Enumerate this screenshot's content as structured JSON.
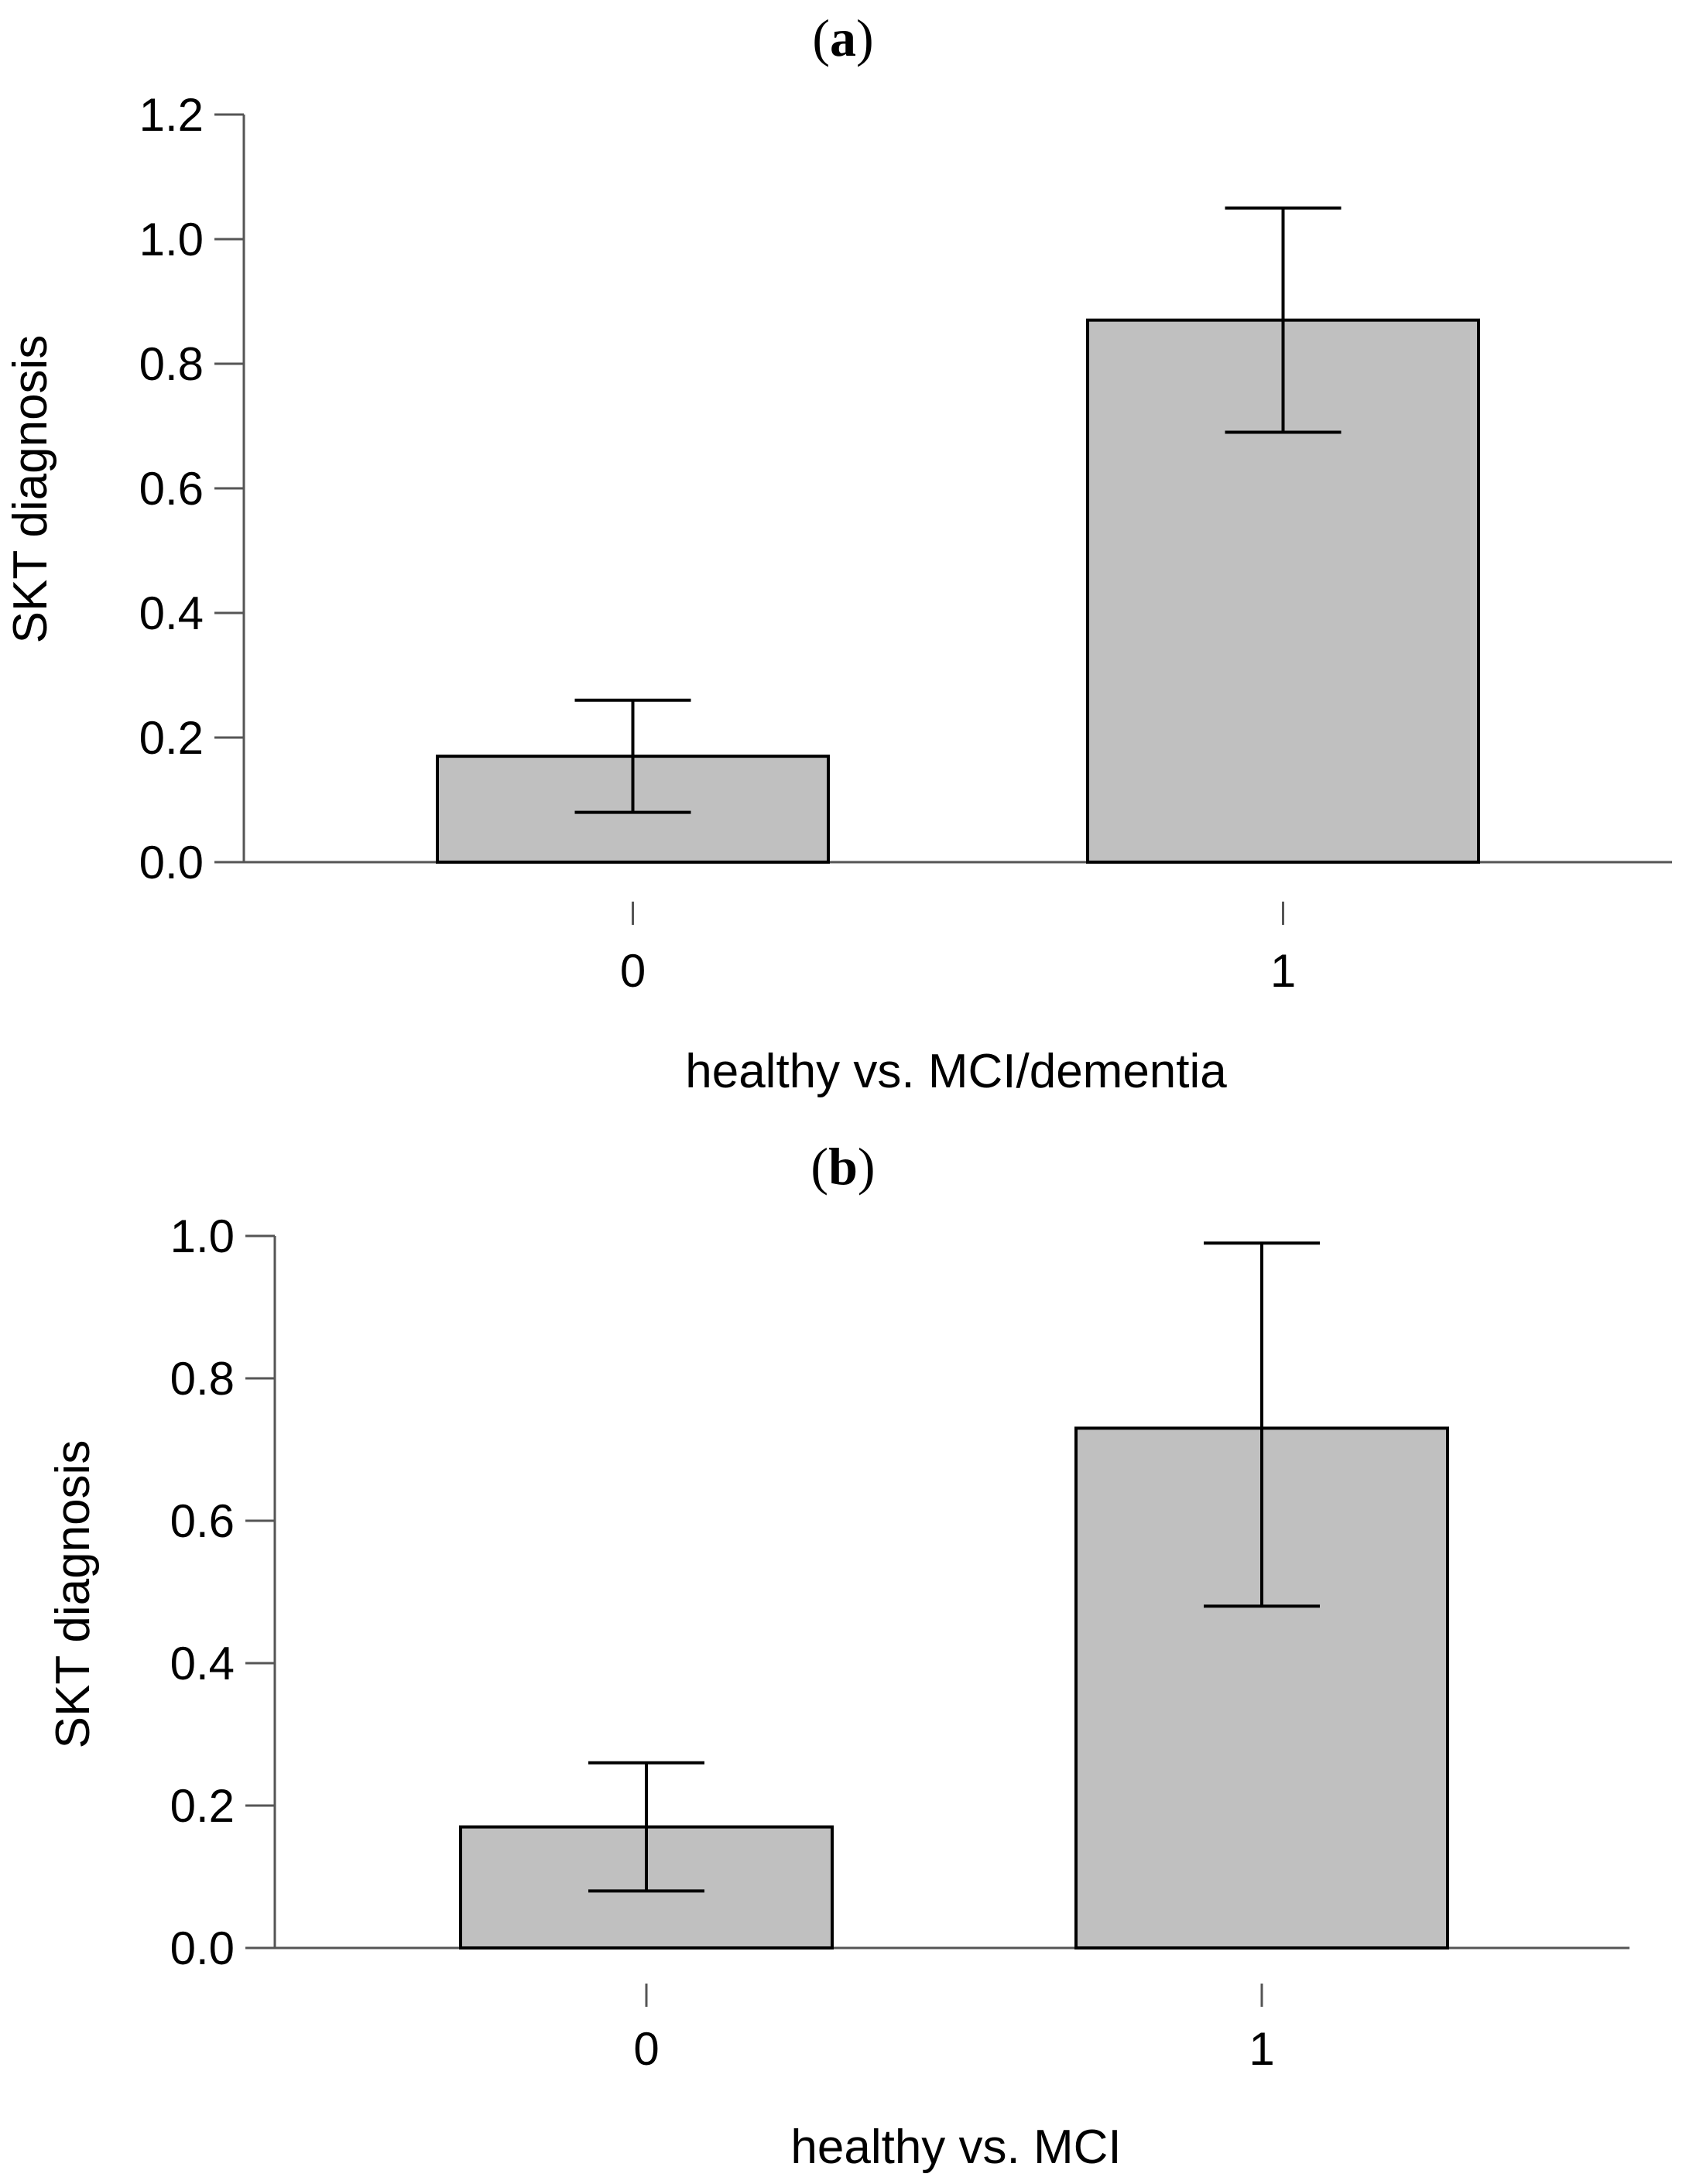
{
  "chart_data": [
    {
      "panel": "a",
      "type": "bar",
      "title": "(a)",
      "xlabel": "healthy vs. MCI/dementia",
      "ylabel": "SKT diagnosis",
      "categories": [
        "0",
        "1"
      ],
      "values": [
        0.17,
        0.87
      ],
      "error_low": [
        0.08,
        0.69
      ],
      "error_high": [
        0.26,
        1.05
      ],
      "ylim": [
        0,
        1.2
      ],
      "yticks": [
        "0.0",
        "0.2",
        "0.4",
        "0.6",
        "0.8",
        "1.0",
        "1.2"
      ],
      "grid": false,
      "bar_color": "#c0c0c0"
    },
    {
      "panel": "b",
      "type": "bar",
      "title": "(b)",
      "xlabel": "healthy vs. MCI",
      "ylabel": "SKT diagnosis",
      "categories": [
        "0",
        "1"
      ],
      "values": [
        0.17,
        0.73
      ],
      "error_low": [
        0.08,
        0.48
      ],
      "error_high": [
        0.26,
        0.99
      ],
      "ylim": [
        0,
        1.0
      ],
      "yticks": [
        "0.0",
        "0.2",
        "0.4",
        "0.6",
        "0.8",
        "1.0"
      ],
      "grid": false,
      "bar_color": "#c0c0c0"
    }
  ],
  "colors": {
    "bar_fill": "#c0c0c0",
    "bar_stroke": "#000000",
    "axis": "#555555",
    "error_bar": "#000000"
  }
}
